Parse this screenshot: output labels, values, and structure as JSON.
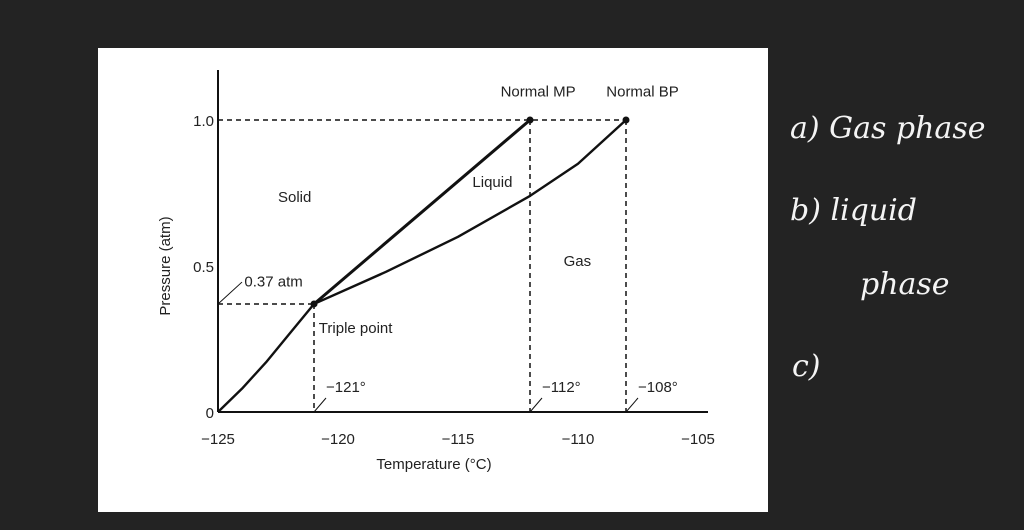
{
  "chart_data": {
    "type": "line",
    "title": "",
    "xlabel": "Temperature (°C)",
    "ylabel": "Pressure (atm)",
    "xlim": [
      -125,
      -105
    ],
    "ylim": [
      0,
      1.0
    ],
    "x_ticks": [
      -125,
      -120,
      -115,
      -110,
      -105
    ],
    "x_tick_labels": [
      "−125",
      "−120",
      "−115",
      "−110",
      "−105"
    ],
    "y_ticks": [
      0,
      0.5,
      1.0
    ],
    "y_tick_labels": [
      "0",
      "0.5",
      "1.0"
    ],
    "grid": false,
    "series": [
      {
        "id": "solid-gas",
        "points": [
          [
            -125,
            0
          ],
          [
            -124,
            0.08
          ],
          [
            -123,
            0.17
          ],
          [
            -122,
            0.27
          ],
          [
            -121,
            0.37
          ]
        ]
      },
      {
        "id": "solid-liquid",
        "points": [
          [
            -121,
            0.37
          ],
          [
            -112,
            1.0
          ]
        ]
      },
      {
        "id": "liquid-gas",
        "points": [
          [
            -121,
            0.37
          ],
          [
            -118,
            0.48
          ],
          [
            -115,
            0.6
          ],
          [
            -112,
            0.74
          ],
          [
            -110,
            0.85
          ],
          [
            -108,
            1.0
          ]
        ]
      }
    ],
    "key_points": [
      {
        "name": "Triple point",
        "x": -121,
        "y": 0.37
      },
      {
        "name": "Normal MP",
        "x": -112,
        "y": 1.0
      },
      {
        "name": "Normal BP",
        "x": -108,
        "y": 1.0
      }
    ],
    "region_labels": {
      "solid": "Solid",
      "liquid": "Liquid",
      "gas": "Gas"
    },
    "annotations": {
      "triple_point": "Triple point",
      "triple_pressure": "0.37 atm",
      "normal_mp": "Normal MP",
      "normal_bp": "Normal BP",
      "t_triple": "−121°",
      "t_mp": "−112°",
      "t_bp": "−108°"
    },
    "colors": {
      "line": "#111111",
      "background": "#ffffff"
    }
  },
  "notes": {
    "a": "a) Gas phase",
    "b1": "b) liquid",
    "b2": "phase",
    "c": "c)"
  },
  "colors": {
    "page_background": "#232323",
    "ink": "#f4f4f4"
  }
}
